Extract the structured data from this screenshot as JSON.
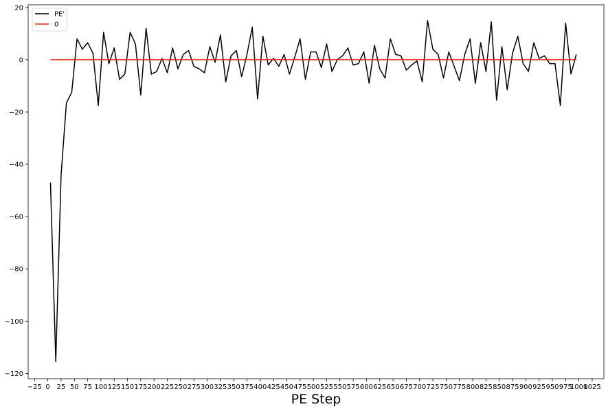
{
  "chart_data": {
    "type": "line",
    "title": "",
    "xlabel": "PE Step",
    "ylabel": "",
    "xlim": [
      -37,
      1047
    ],
    "ylim": [
      -122,
      21
    ],
    "xticks": [
      -25,
      0,
      25,
      50,
      75,
      100,
      125,
      150,
      175,
      200,
      225,
      250,
      275,
      300,
      325,
      350,
      375,
      400,
      425,
      450,
      475,
      500,
      525,
      550,
      575,
      600,
      625,
      650,
      675,
      700,
      725,
      750,
      775,
      800,
      825,
      850,
      875,
      900,
      925,
      950,
      975,
      1000,
      1025
    ],
    "yticks": [
      20,
      0,
      -20,
      -40,
      -60,
      -80,
      -100,
      -120
    ],
    "grid": false,
    "legend": {
      "placement": "upper-left"
    },
    "series": [
      {
        "name": "PE'",
        "color": "#000000",
        "x": [
          5,
          15,
          25,
          35,
          45,
          55,
          65,
          75,
          85,
          95,
          105,
          115,
          125,
          135,
          145,
          155,
          165,
          175,
          185,
          195,
          205,
          215,
          225,
          235,
          245,
          255,
          265,
          275,
          285,
          295,
          305,
          315,
          325,
          335,
          345,
          355,
          365,
          375,
          385,
          395,
          405,
          415,
          425,
          435,
          445,
          455,
          465,
          475,
          485,
          495,
          505,
          515,
          525,
          535,
          545,
          555,
          565,
          575,
          585,
          595,
          605,
          615,
          625,
          635,
          645,
          655,
          665,
          675,
          685,
          695,
          705,
          715,
          725,
          735,
          745,
          755,
          765,
          775,
          785,
          795,
          805,
          815,
          825,
          835,
          845,
          855,
          865,
          875,
          885,
          895,
          905,
          915,
          925,
          935,
          945,
          955,
          965,
          975,
          985,
          995
        ],
        "values": [
          -47,
          -115.5,
          -44,
          -16.5,
          -12.5,
          8,
          4,
          6.5,
          2.5,
          -17.5,
          10.5,
          -1.5,
          4.5,
          -7.5,
          -5.5,
          10.5,
          6,
          -13.5,
          12,
          -5.5,
          -4.5,
          0.5,
          -5,
          4.5,
          -3.5,
          2,
          3.5,
          -2.5,
          -3.5,
          -5,
          5,
          -1,
          9.5,
          -8.5,
          1.5,
          3.5,
          -6.5,
          2,
          12.5,
          -15,
          9,
          -2,
          0.5,
          -2.5,
          2,
          -5.5,
          1,
          8,
          -7.5,
          3,
          3,
          -3,
          6,
          -4.5,
          0,
          1.5,
          4.5,
          -2,
          -1.5,
          3,
          -9,
          5.5,
          -3.5,
          -7,
          8,
          2,
          1.5,
          -4,
          -2,
          -0.5,
          -8.5,
          15,
          4,
          2,
          -7,
          3,
          -2.5,
          -8,
          2,
          8,
          -9,
          6.5,
          -4.5,
          14.5,
          -15.5,
          5,
          -11.5,
          2.5,
          9,
          -1.5,
          -4.5,
          6.5,
          0.5,
          1.5,
          -1.5,
          -1.5,
          -17.5,
          14,
          -5.5,
          2
        ]
      },
      {
        "name": "0",
        "color": "#e8251c",
        "x": [
          5,
          995
        ],
        "values": [
          0,
          0
        ]
      }
    ]
  }
}
